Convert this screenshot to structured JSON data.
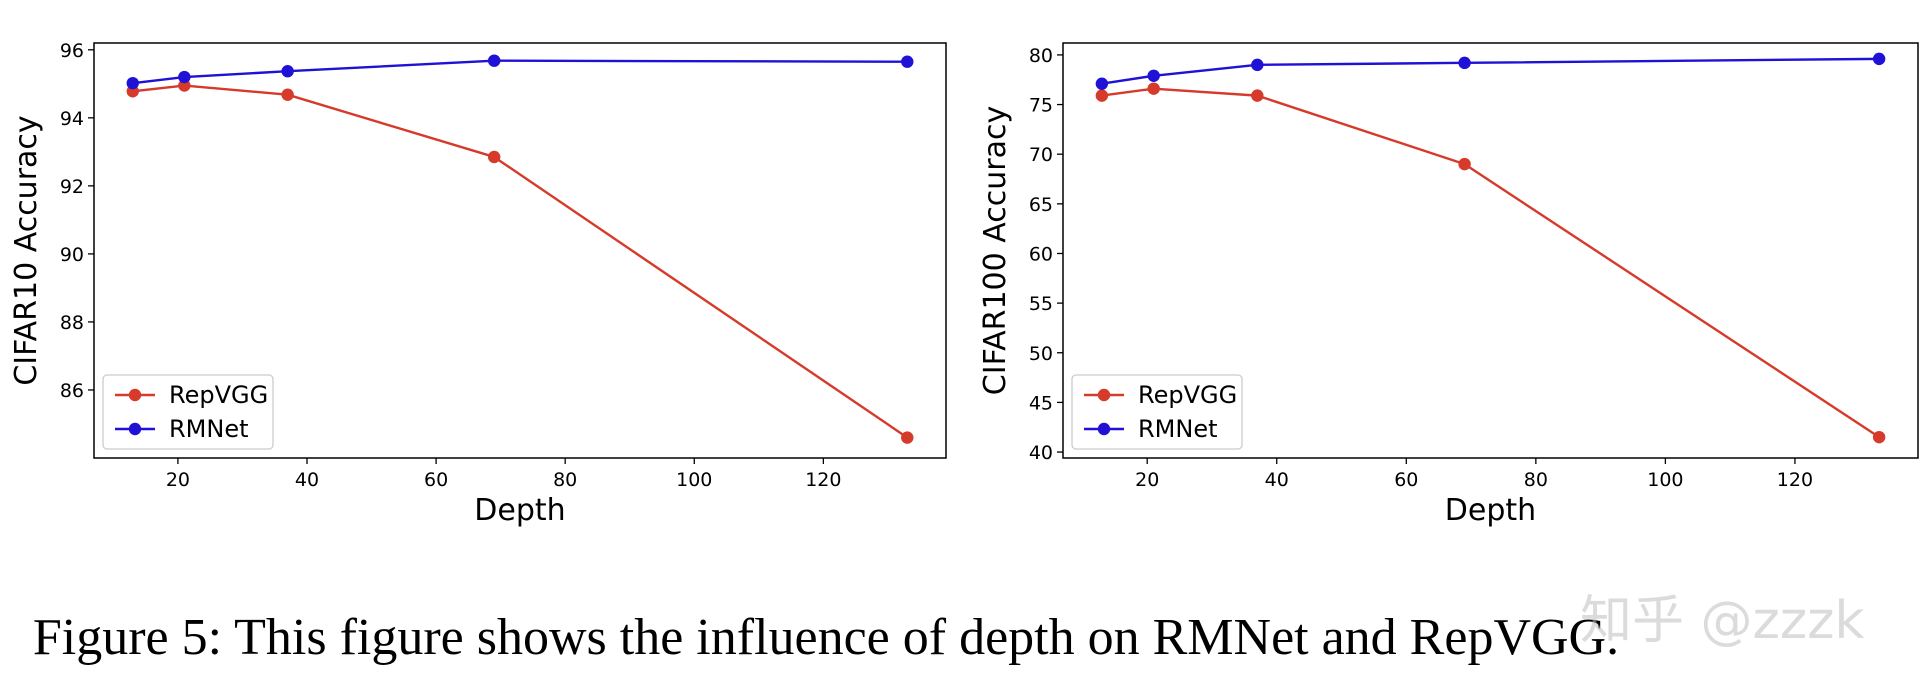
{
  "chart_data": [
    {
      "type": "line",
      "x": [
        13,
        21,
        37,
        69,
        133
      ],
      "series": [
        {
          "name": "RepVGG",
          "color": "#d63a2a",
          "values": [
            94.78,
            94.95,
            94.68,
            92.85,
            84.6
          ]
        },
        {
          "name": "RMNet",
          "color": "#1f11d6",
          "values": [
            95.02,
            95.2,
            95.37,
            95.68,
            95.65
          ]
        }
      ],
      "xlabel": "Depth",
      "ylabel": "CIFAR10 Accuracy",
      "xlim": [
        7,
        139
      ],
      "ylim": [
        84.0,
        96.2
      ],
      "xticks": [
        20,
        40,
        60,
        80,
        100,
        120
      ],
      "yticks": [
        86,
        88,
        90,
        92,
        94,
        96
      ],
      "legend": "lower-left",
      "grid": false
    },
    {
      "type": "line",
      "x": [
        13,
        21,
        37,
        69,
        133
      ],
      "series": [
        {
          "name": "RepVGG",
          "color": "#d63a2a",
          "values": [
            75.9,
            76.6,
            75.9,
            69.0,
            41.5
          ]
        },
        {
          "name": "RMNet",
          "color": "#1f11d6",
          "values": [
            77.1,
            77.9,
            79.0,
            79.2,
            79.6
          ]
        }
      ],
      "xlabel": "Depth",
      "ylabel": "CIFAR100 Accuracy",
      "xlim": [
        7,
        139
      ],
      "ylim": [
        39.4,
        81.2
      ],
      "xticks": [
        20,
        40,
        60,
        80,
        100,
        120
      ],
      "yticks": [
        40,
        45,
        50,
        55,
        60,
        65,
        70,
        75,
        80
      ],
      "legend": "lower-left",
      "grid": false
    }
  ],
  "caption": "Figure 5: This figure shows the influence of depth on RMNet and RepVGG.",
  "watermark": "知乎 @zzzk"
}
